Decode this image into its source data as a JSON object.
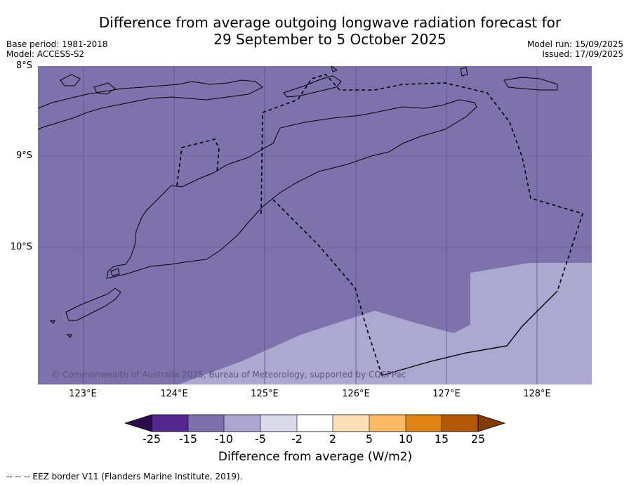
{
  "title_line1": "Difference from average outgoing longwave radiation forecast for",
  "title_line2": "29 September to 5 October 2025",
  "meta_left": [
    "Base period: 1981-2018",
    "Model: ACCESS-S2"
  ],
  "meta_right": [
    "Model run: 15/09/2025",
    "Issued: 17/09/2025"
  ],
  "lat_labels": [
    "8°S",
    "9°S",
    "10°S"
  ],
  "lon_labels": [
    "123°E",
    "124°E",
    "125°E",
    "126°E",
    "127°E",
    "128°E"
  ],
  "copyright": "© Commonwealth of Australia 2025, Bureau of Meteorology, supported by COSPPac",
  "colorbar": {
    "ticks": [
      "-25",
      "-15",
      "-10",
      "-5",
      "-2",
      "2",
      "5",
      "10",
      "15",
      "25"
    ],
    "colors": [
      "#2d0b4d",
      "#54278f",
      "#7d6fab",
      "#aca6d0",
      "#dadaeb",
      "#ffffff",
      "#fee0b6",
      "#fdb863",
      "#e08214",
      "#b35806",
      "#7f3b08"
    ],
    "label": "Difference from average (W/m2)"
  },
  "footnote": "--  --  -- EEZ border V11 (Flanders Marine Institute, 2019).",
  "map_data": {
    "lon_range": [
      122.5,
      128.6
    ],
    "lat_range": [
      -11.5,
      -8.0
    ],
    "dominant_category": "-15 to -10",
    "southeast_category": "-10 to -5"
  }
}
